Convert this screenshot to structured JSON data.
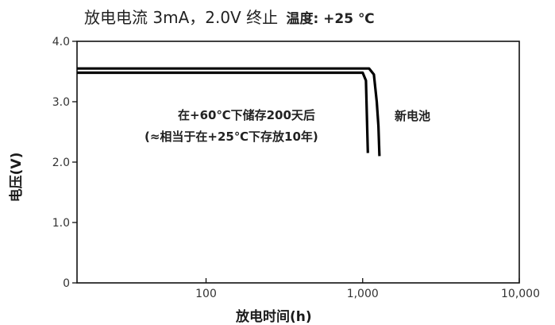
{
  "title": {
    "main": "放电电流 3mA，2.0V 终止",
    "condition": "温度: +25 ℃"
  },
  "colors": {
    "line": "#000000",
    "axis": "#111111"
  },
  "annotations": {
    "storage_line1": "在+60℃下储存200天后",
    "storage_line2": "(≈相当于在+25℃下存放10年)",
    "new_battery": "新电池"
  },
  "chart_data": {
    "type": "line",
    "title": "放电电流 3mA，2.0V 终止",
    "subtitle": "温度: +25 ℃",
    "xlabel": "放电时间(h)",
    "ylabel": "电压(V)",
    "x_scale": "log",
    "xlim": [
      15,
      10000
    ],
    "ylim": [
      0,
      4.0
    ],
    "x_ticks": [
      {
        "value": 100,
        "label": "100"
      },
      {
        "value": 1000,
        "label": "1,000"
      },
      {
        "value": 10000,
        "label": "10,000"
      }
    ],
    "y_ticks": [
      {
        "value": 0,
        "label": "0"
      },
      {
        "value": 1.0,
        "label": "1.0"
      },
      {
        "value": 2.0,
        "label": "2.0"
      },
      {
        "value": 3.0,
        "label": "3.0"
      },
      {
        "value": 4.0,
        "label": "4.0"
      }
    ],
    "grid": false,
    "series": [
      {
        "name": "新电池",
        "x": [
          15,
          1100,
          1180,
          1230,
          1260,
          1280
        ],
        "y": [
          3.55,
          3.55,
          3.45,
          3.0,
          2.6,
          2.1
        ]
      },
      {
        "name": "在+60℃下储存200天后",
        "x": [
          15,
          1000,
          1050,
          1080
        ],
        "y": [
          3.48,
          3.48,
          3.35,
          2.15
        ]
      }
    ]
  }
}
